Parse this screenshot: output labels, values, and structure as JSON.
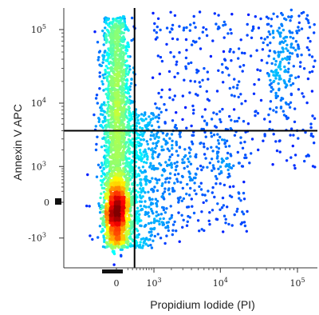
{
  "chart_data": {
    "type": "scatter",
    "xlabel": "Propidium Iodide (PI)",
    "ylabel": "Annexin V APC",
    "scale": "biexponential",
    "x_ticks": [
      {
        "label": "0",
        "value": 0
      },
      {
        "label": "10",
        "exp": "3",
        "value": 1000
      },
      {
        "label": "10",
        "exp": "4",
        "value": 10000
      },
      {
        "label": "10",
        "exp": "5",
        "value": 100000
      }
    ],
    "y_ticks": [
      {
        "label": "-10",
        "exp": "3",
        "value": -1000
      },
      {
        "label": "0",
        "value": 0
      },
      {
        "label": "10",
        "exp": "3",
        "value": 1000
      },
      {
        "label": "10",
        "exp": "4",
        "value": 10000
      },
      {
        "label": "10",
        "exp": "5",
        "value": 100000
      }
    ],
    "gates": {
      "x_threshold": 350,
      "y_threshold": 4000
    },
    "colormap": "jet density",
    "populations": [
      {
        "region": "Annexin V- / PI-",
        "center": {
          "x": 0,
          "y": -300
        },
        "density": "very high"
      },
      {
        "region": "Annexin V+ / PI-",
        "center": {
          "x": 0,
          "y": 20000
        },
        "density": "high"
      },
      {
        "region": "Annexin V+ / PI+",
        "center": {
          "x": 50000,
          "y": 20000
        },
        "density": "low"
      },
      {
        "region": "Annexin V- / PI+",
        "center": {
          "x": 3000,
          "y": 300
        },
        "density": "low"
      }
    ],
    "colors": {
      "sparse": "#0000cc",
      "dense": "#ff0000",
      "gate": "#000000"
    }
  }
}
